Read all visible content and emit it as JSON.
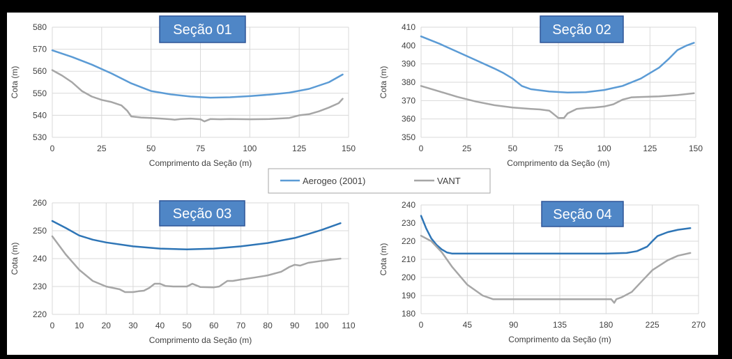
{
  "legend": {
    "series_a": "Aerogeo (2001)",
    "series_b": "VANT"
  },
  "colors": {
    "aerogeo": "#5b9bd5",
    "aerogeo_dark": "#2e75b6",
    "vant": "#a6a6a6",
    "title_box": "#4f86c6",
    "title_border": "#2f5597"
  },
  "chart_data": [
    {
      "type": "line",
      "title": "Seção 01",
      "xlabel": "Comprimento da Seção (m)",
      "ylabel": "Cota (m)",
      "xlim": [
        0,
        150
      ],
      "ylim": [
        530,
        580
      ],
      "xticks": [
        "0",
        "25",
        "50",
        "75",
        "100",
        "125",
        "150"
      ],
      "yticks": [
        "530",
        "540",
        "550",
        "560",
        "570",
        "580"
      ],
      "series": [
        {
          "name": "Aerogeo (2001)",
          "x": [
            0,
            10,
            20,
            30,
            40,
            50,
            60,
            70,
            80,
            90,
            100,
            110,
            120,
            130,
            140,
            147
          ],
          "y": [
            569.5,
            566.5,
            563,
            559,
            554.5,
            551,
            549.5,
            548.5,
            548,
            548.2,
            548.7,
            549.4,
            550.3,
            552,
            555,
            558.5
          ]
        },
        {
          "name": "VANT",
          "x": [
            0,
            5,
            10,
            15,
            20,
            25,
            30,
            35,
            38,
            40,
            45,
            50,
            55,
            60,
            62,
            65,
            70,
            75,
            77,
            80,
            85,
            90,
            100,
            110,
            120,
            125,
            130,
            135,
            140,
            145,
            147
          ],
          "y": [
            560.5,
            558,
            555,
            551,
            548.5,
            547,
            546,
            544.5,
            542,
            539.5,
            539,
            538.8,
            538.5,
            538.2,
            538,
            538.3,
            538.5,
            538.2,
            537.2,
            538.3,
            538.2,
            538.3,
            538.2,
            538.3,
            538.8,
            540,
            540.5,
            541.8,
            543.5,
            545.5,
            547.5
          ]
        }
      ]
    },
    {
      "type": "line",
      "title": "Seção 02",
      "xlabel": "Comprimento da Seção (m)",
      "ylabel": "Cota (m)",
      "xlim": [
        0,
        150
      ],
      "ylim": [
        350,
        410
      ],
      "xticks": [
        "0",
        "25",
        "50",
        "75",
        "100",
        "125",
        "150"
      ],
      "yticks": [
        "350",
        "360",
        "370",
        "380",
        "390",
        "400",
        "410"
      ],
      "series": [
        {
          "name": "Aerogeo (2001)",
          "x": [
            0,
            10,
            20,
            30,
            40,
            45,
            50,
            55,
            60,
            70,
            80,
            90,
            100,
            110,
            120,
            130,
            135,
            140,
            145,
            149
          ],
          "y": [
            405,
            401,
            396.5,
            392,
            387.5,
            385,
            382,
            378,
            376.2,
            375,
            374.4,
            374.6,
            375.8,
            378,
            382,
            388,
            392.5,
            397.5,
            400,
            401.5
          ]
        },
        {
          "name": "VANT",
          "x": [
            0,
            10,
            20,
            30,
            40,
            50,
            60,
            65,
            70,
            72,
            75,
            78,
            80,
            85,
            90,
            95,
            100,
            105,
            110,
            115,
            120,
            130,
            140,
            149
          ],
          "y": [
            378,
            375,
            372,
            369.5,
            367.5,
            366.2,
            365.5,
            365.2,
            364.5,
            363,
            360.5,
            360.5,
            363,
            365.5,
            366,
            366.3,
            366.8,
            368,
            370.5,
            371.8,
            372,
            372.3,
            373,
            374
          ]
        }
      ]
    },
    {
      "type": "line",
      "title": "Seção 03",
      "xlabel": "Comprimento da Seção (m)",
      "ylabel": "Cota (m)",
      "xlim": [
        0,
        110
      ],
      "ylim": [
        220,
        260
      ],
      "xticks": [
        "0",
        "10",
        "20",
        "30",
        "40",
        "50",
        "60",
        "70",
        "80",
        "90",
        "100",
        "110"
      ],
      "yticks": [
        "220",
        "230",
        "240",
        "250",
        "260"
      ],
      "series": [
        {
          "name": "Aerogeo (2001)",
          "x": [
            0,
            5,
            10,
            15,
            20,
            30,
            40,
            50,
            60,
            70,
            80,
            90,
            95,
            100,
            107
          ],
          "y": [
            253.5,
            251,
            248.3,
            246.8,
            245.8,
            244.4,
            243.6,
            243.3,
            243.6,
            244.4,
            245.6,
            247.4,
            248.8,
            250.3,
            252.7
          ]
        },
        {
          "name": "VANT",
          "x": [
            0,
            5,
            10,
            15,
            20,
            25,
            27,
            30,
            32,
            34,
            36,
            38,
            40,
            42,
            45,
            50,
            52,
            55,
            60,
            62,
            65,
            67,
            70,
            75,
            80,
            85,
            88,
            90,
            92,
            95,
            100,
            107
          ],
          "y": [
            248,
            241.5,
            236,
            232,
            230,
            229,
            228,
            228,
            228.3,
            228.5,
            229.5,
            231,
            231,
            230.2,
            230,
            230,
            231,
            229.8,
            229.7,
            230,
            232,
            232,
            232.5,
            233.2,
            234,
            235.3,
            237,
            237.8,
            237.5,
            238.5,
            239.2,
            240
          ]
        }
      ]
    },
    {
      "type": "line",
      "title": "Seção 04",
      "xlabel": "Comprimento da Seção (m)",
      "ylabel": "Cota (m)",
      "xlim": [
        0,
        270
      ],
      "ylim": [
        180,
        240
      ],
      "xticks": [
        "0",
        "45",
        "90",
        "135",
        "180",
        "225",
        "270"
      ],
      "yticks": [
        "180",
        "190",
        "200",
        "210",
        "220",
        "230",
        "240"
      ],
      "series": [
        {
          "name": "Aerogeo (2001)",
          "x": [
            0,
            5,
            10,
            15,
            20,
            25,
            30,
            60,
            100,
            150,
            180,
            200,
            210,
            220,
            225,
            230,
            240,
            250,
            262
          ],
          "y": [
            234,
            227,
            221.5,
            218,
            215.5,
            213.8,
            213.2,
            213.2,
            213.2,
            213.2,
            213.2,
            213.5,
            214.5,
            217,
            220,
            222.8,
            225,
            226.3,
            227.2
          ]
        },
        {
          "name": "VANT",
          "x": [
            0,
            10,
            20,
            30,
            45,
            60,
            70,
            90,
            135,
            180,
            185,
            188,
            190,
            195,
            205,
            215,
            225,
            240,
            250,
            262
          ],
          "y": [
            223,
            220,
            214,
            206,
            196,
            190,
            188,
            188,
            188,
            188,
            188,
            186,
            188,
            189,
            192,
            198,
            204,
            209.5,
            212,
            213.5
          ]
        }
      ]
    }
  ]
}
